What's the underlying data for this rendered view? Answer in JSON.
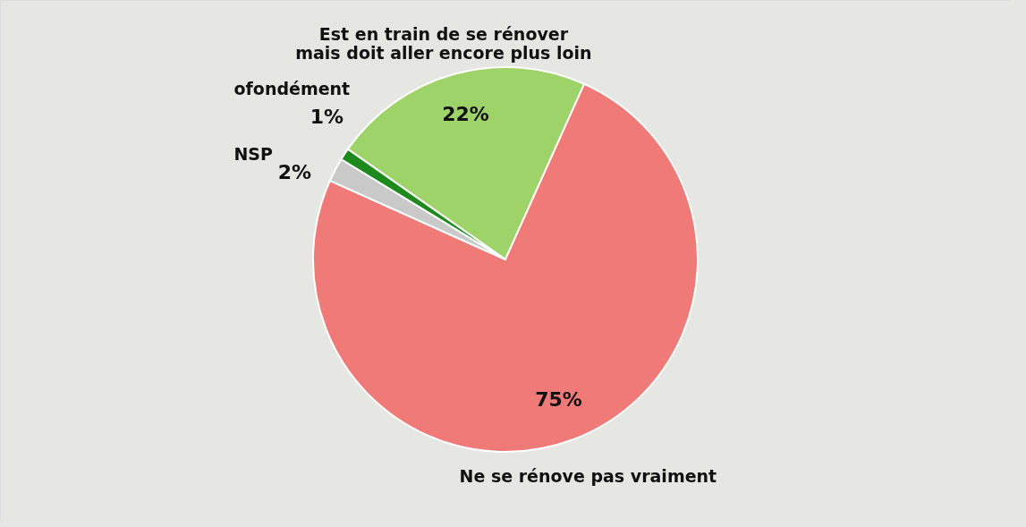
{
  "chart_data": {
    "type": "pie",
    "categories": [
      "Est en train de se rénover\nmais doit aller encore plus loin",
      "Ne se rénove pas vraiment",
      "NSP",
      "ofondément"
    ],
    "values": [
      22,
      75,
      2,
      1
    ],
    "colors": [
      "#9ed36a",
      "#f07a78",
      "#c9c9c9",
      "#1e8a1e"
    ],
    "value_labels": [
      "22%",
      "75%",
      "2%",
      "1%"
    ]
  }
}
